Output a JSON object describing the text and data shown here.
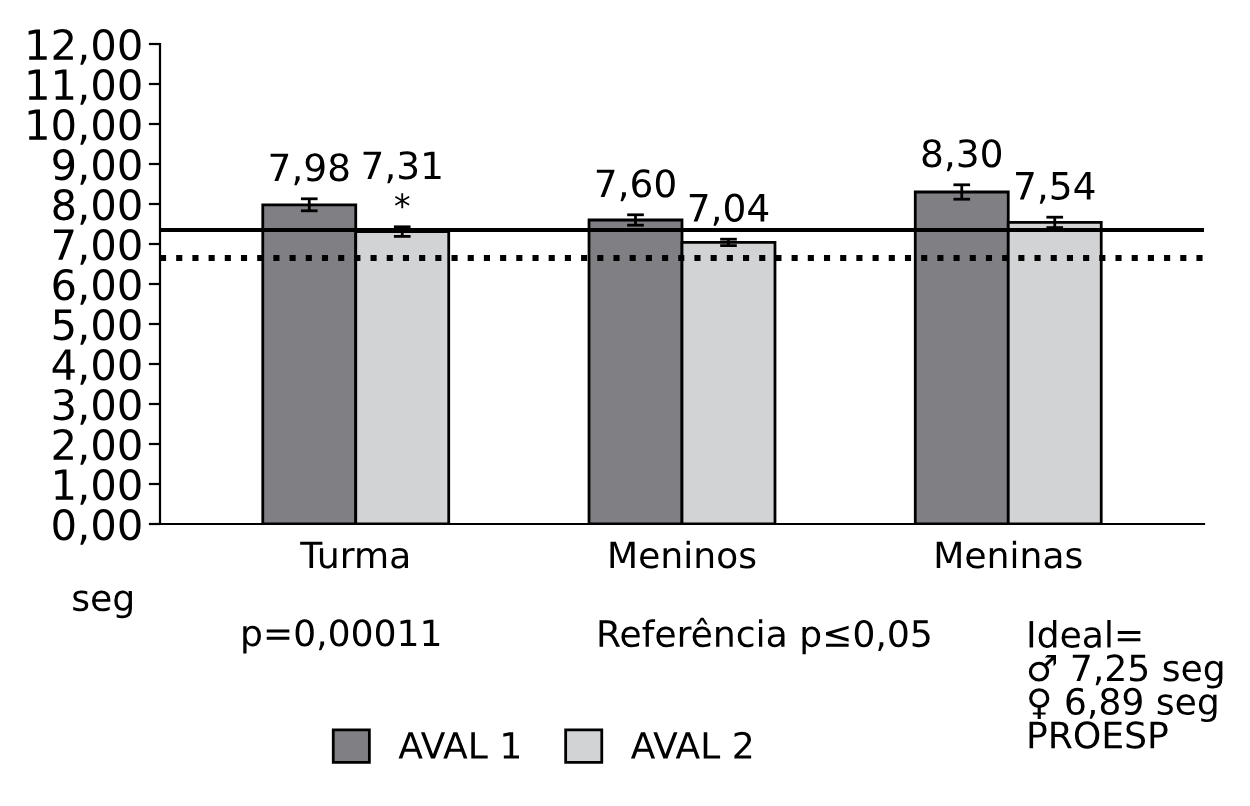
{
  "chart_data": {
    "type": "bar",
    "categories": [
      "Turma",
      "Meninos",
      "Meninas"
    ],
    "series": [
      {
        "name": "AVAL 1",
        "color": "#7f7f84",
        "values": [
          7.98,
          7.6,
          8.3
        ],
        "errors": [
          0.15,
          0.13,
          0.18
        ],
        "value_labels": [
          "7,98",
          "7,60",
          "8,30"
        ]
      },
      {
        "name": "AVAL 2",
        "color": "#d2d3d5",
        "values": [
          7.31,
          7.04,
          7.54
        ],
        "errors": [
          0.12,
          0.08,
          0.13
        ],
        "value_labels": [
          "7,31",
          "7,04",
          "7,54"
        ]
      }
    ],
    "ylabel": "seg",
    "ylim": [
      0,
      12
    ],
    "yticks": [
      {
        "value": 0,
        "label": "0,00"
      },
      {
        "value": 1,
        "label": "1,00"
      },
      {
        "value": 2,
        "label": "2,00"
      },
      {
        "value": 3,
        "label": "3,00"
      },
      {
        "value": 4,
        "label": "4,00"
      },
      {
        "value": 5,
        "label": "5,00"
      },
      {
        "value": 6,
        "label": "6,00"
      },
      {
        "value": 7,
        "label": "7,00"
      },
      {
        "value": 8,
        "label": "8,00"
      },
      {
        "value": 9,
        "label": "9,00"
      },
      {
        "value": 10,
        "label": "10,00"
      },
      {
        "value": 11,
        "label": "11,00"
      },
      {
        "value": 12,
        "label": "12,00"
      }
    ],
    "ref_lines": [
      {
        "axis": "y",
        "value": 7.35,
        "color": "#000000",
        "line_style": "solid"
      },
      {
        "axis": "y",
        "value": 6.65,
        "color": "#000000",
        "line_style": "dotted"
      }
    ],
    "annotations": [
      {
        "text": "*",
        "x": "Turma",
        "y": 7.31
      },
      "p=0,00011",
      "Referência p≤0,05",
      "Ideal=\n♂ 7,25 seg\n♀ 6,89 seg\nPROESP"
    ],
    "legend": "bottom",
    "grid": false
  }
}
